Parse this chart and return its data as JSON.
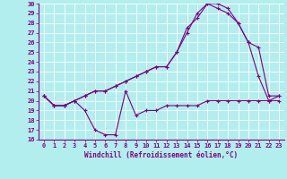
{
  "xlabel": "Windchill (Refroidissement éolien,°C)",
  "xlim": [
    -0.5,
    23.5
  ],
  "ylim": [
    16,
    30
  ],
  "xticks": [
    0,
    1,
    2,
    3,
    4,
    5,
    6,
    7,
    8,
    9,
    10,
    11,
    12,
    13,
    14,
    15,
    16,
    17,
    18,
    19,
    20,
    21,
    22,
    23
  ],
  "yticks": [
    16,
    17,
    18,
    19,
    20,
    21,
    22,
    23,
    24,
    25,
    26,
    27,
    28,
    29,
    30
  ],
  "bg_color": "#b2eeee",
  "line_color": "#800080",
  "line1_x": [
    0,
    1,
    2,
    3,
    4,
    5,
    6,
    7,
    8,
    9,
    10,
    11,
    12,
    13,
    14,
    15,
    16,
    17,
    18,
    19,
    20,
    21,
    22,
    23
  ],
  "line1_y": [
    20.5,
    19.5,
    19.5,
    20.0,
    19.0,
    17.0,
    16.5,
    16.5,
    21.0,
    18.5,
    19.0,
    19.0,
    19.5,
    19.5,
    19.5,
    19.5,
    20.0,
    20.0,
    20.0,
    20.0,
    20.0,
    20.0,
    20.0,
    20.0
  ],
  "line2_x": [
    0,
    1,
    2,
    3,
    4,
    5,
    6,
    7,
    8,
    9,
    10,
    11,
    12,
    13,
    14,
    15,
    16,
    17,
    18,
    19,
    20,
    21,
    22,
    23
  ],
  "line2_y": [
    20.5,
    19.5,
    19.5,
    20.0,
    20.5,
    21.0,
    21.0,
    21.5,
    22.0,
    22.5,
    23.0,
    23.5,
    23.5,
    25.0,
    27.5,
    28.5,
    30.0,
    30.0,
    29.5,
    28.0,
    26.0,
    22.5,
    20.0,
    20.5
  ],
  "line3_x": [
    0,
    1,
    2,
    3,
    4,
    5,
    6,
    7,
    8,
    9,
    10,
    11,
    12,
    13,
    14,
    15,
    16,
    17,
    18,
    19,
    20,
    21,
    22,
    23
  ],
  "line3_y": [
    20.5,
    19.5,
    19.5,
    20.0,
    20.5,
    21.0,
    21.0,
    21.5,
    22.0,
    22.5,
    23.0,
    23.5,
    23.5,
    25.0,
    27.0,
    29.0,
    30.0,
    29.5,
    29.0,
    28.0,
    26.0,
    25.5,
    20.5,
    20.5
  ],
  "tick_fontsize": 5.0,
  "xlabel_fontsize": 5.5,
  "line_width": 0.8,
  "marker_size": 3.0
}
